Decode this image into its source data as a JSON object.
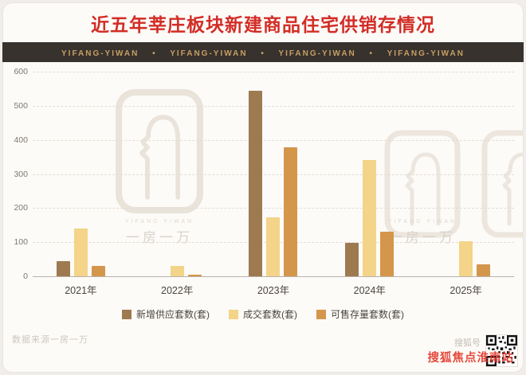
{
  "title": "近五年莘庄板块新建商品住宅供销存情况",
  "banner": {
    "text": "YIFANG-YIWAN　 •　 YIFANG-YIWAN　 •　 YIFANG-YIWAN　 •　 YIFANG-YIWAN"
  },
  "chart_data": {
    "type": "bar",
    "categories": [
      "2021年",
      "2022年",
      "2023年",
      "2024年",
      "2025年"
    ],
    "series": [
      {
        "name": "新增供应套数(套)",
        "color": "#9d7a50",
        "values": [
          44,
          0,
          545,
          97,
          0
        ]
      },
      {
        "name": "成交套数(套)",
        "color": "#f3d488",
        "values": [
          140,
          30,
          172,
          340,
          103
        ]
      },
      {
        "name": "可售存量套数(套)",
        "color": "#d4964b",
        "values": [
          30,
          5,
          379,
          131,
          34
        ]
      }
    ],
    "title": "近五年莘庄板块新建商品住宅供销存情况",
    "xlabel": "",
    "ylabel": "",
    "ylim": [
      0,
      600
    ],
    "yticks": [
      600,
      500,
      400,
      300,
      200,
      100,
      0
    ],
    "grid": true,
    "legend_position": "bottom"
  },
  "watermark": {
    "brand_en": "YIFANG YIWAN",
    "brand_cn": "一房一万"
  },
  "footer": {
    "source": "数据来源一房一万",
    "sohu_account_label": "搜狐号",
    "sohu_watermark": "搜狐焦点淮南站"
  },
  "colors": {
    "title_red": "#d22d26",
    "banner_bg": "#37322e",
    "banner_gold": "#c79e63",
    "sohu_red": "#e23a2c"
  }
}
